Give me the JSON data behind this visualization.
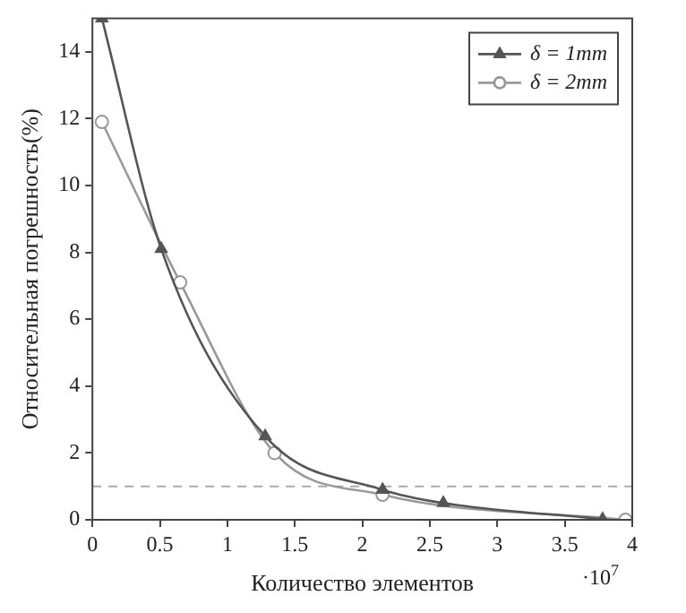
{
  "chart_data": {
    "type": "line",
    "xlabel": "Количество элементов",
    "ylabel": "Относительная погрешность(%)",
    "xlim": [
      0,
      4
    ],
    "xticks": [
      0,
      0.5,
      1,
      1.5,
      2,
      2.5,
      3,
      3.5,
      4
    ],
    "ylim": [
      0,
      15
    ],
    "yticks": [
      0,
      2,
      4,
      6,
      8,
      10,
      12,
      14
    ],
    "grid": false,
    "legend": "top right",
    "annotations": [
      "·10$^{7}$"
    ],
    "ref_lines": [
      {
        "axis": "y",
        "value": 1,
        "color": "#aaaaaa",
        "line_style": "dashed"
      }
    ],
    "series": [
      {
        "name": "δ = 1mm",
        "color": "#555555",
        "marker": "triangle",
        "x": [
          0.07,
          0.51,
          1.28,
          2.15,
          2.6,
          3.78
        ],
        "values": [
          15,
          8.1,
          2.5,
          0.9,
          0.5,
          0.02
        ]
      },
      {
        "name": "δ = 2mm",
        "color": "#999999",
        "marker": "circle",
        "x": [
          0.07,
          0.65,
          1.35,
          2.15,
          3.95
        ],
        "values": [
          11.9,
          7.1,
          2.0,
          0.75,
          0
        ]
      }
    ]
  }
}
